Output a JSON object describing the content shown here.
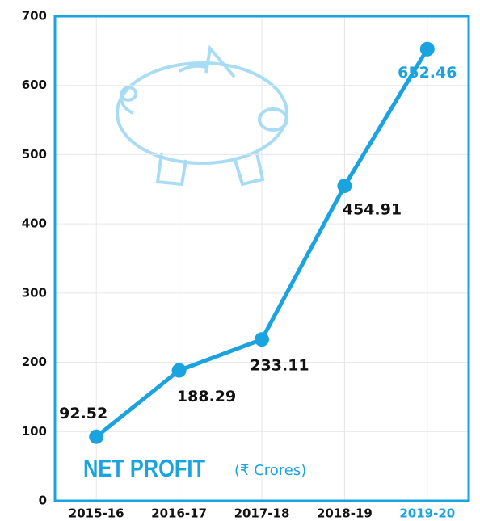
{
  "chart_data": {
    "type": "line",
    "title": "NET PROFIT",
    "subtitle": "(₹ Crores)",
    "categories": [
      "2015-16",
      "2016-17",
      "2017-18",
      "2018-19",
      "2019-20"
    ],
    "series": [
      {
        "name": "Net Profit",
        "color": "#1ba3e0",
        "values": [
          92.52,
          188.29,
          233.11,
          454.91,
          652.46
        ]
      }
    ],
    "ylim": [
      0,
      700
    ],
    "yticks": [
      0,
      100,
      200,
      300,
      400,
      500,
      600,
      700
    ],
    "grid": true
  }
}
